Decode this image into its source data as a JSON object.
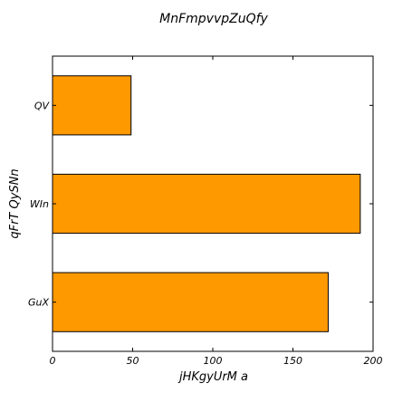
{
  "chart_data": {
    "type": "bar",
    "orientation": "horizontal",
    "title": "MnFmpvvpZuQfy",
    "xlabel": "jHKgyUrM a",
    "ylabel": "qFrT QySNn",
    "categories": [
      "QV",
      "WIn",
      "GuX"
    ],
    "values": [
      49,
      192,
      172
    ],
    "xlim": [
      0,
      200
    ],
    "xticks": [
      0,
      50,
      100,
      150,
      200
    ],
    "grid": false,
    "bar_color": "#ff9900",
    "edge_color": "#000000"
  }
}
